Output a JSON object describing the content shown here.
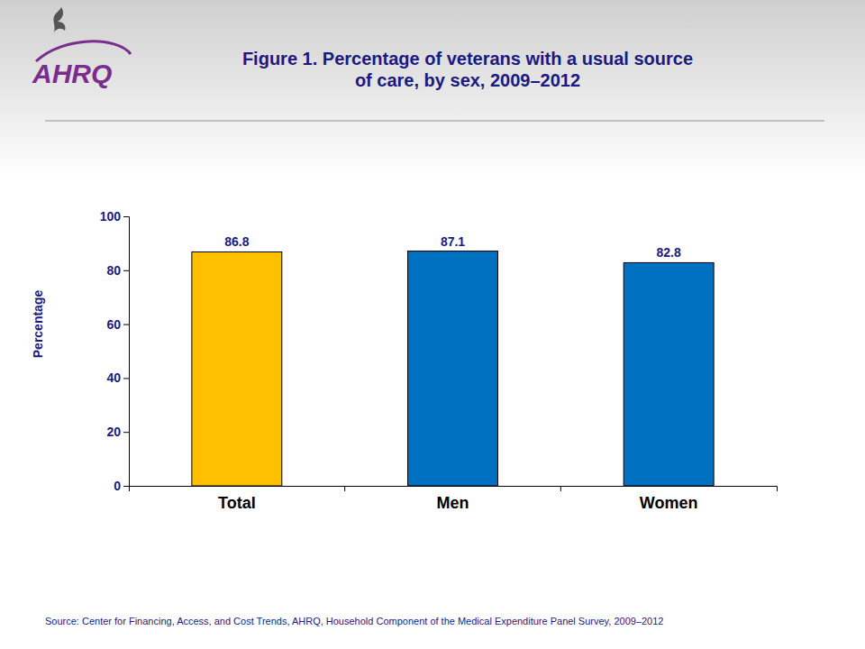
{
  "chart_data": {
    "type": "bar",
    "title": "Figure 1. Percentage of veterans with a usual source of care, by sex, 2009–2012",
    "ylabel": "Percentage",
    "categories": [
      "Total",
      "Men",
      "Women"
    ],
    "values": [
      86.8,
      87.1,
      82.8
    ],
    "colors": [
      "#ffc000",
      "#0070c0",
      "#0070c0"
    ],
    "ylim": [
      0,
      100
    ],
    "yticks": [
      0,
      20,
      40,
      60,
      80,
      100
    ],
    "grid": false,
    "data_labels": true,
    "source": "Source: Center for Financing, Access, and Cost Trends, AHRQ, Household Component of the Medical Expenditure Panel Survey, 2009–2012",
    "annotations": [
      "AHRQ"
    ]
  }
}
